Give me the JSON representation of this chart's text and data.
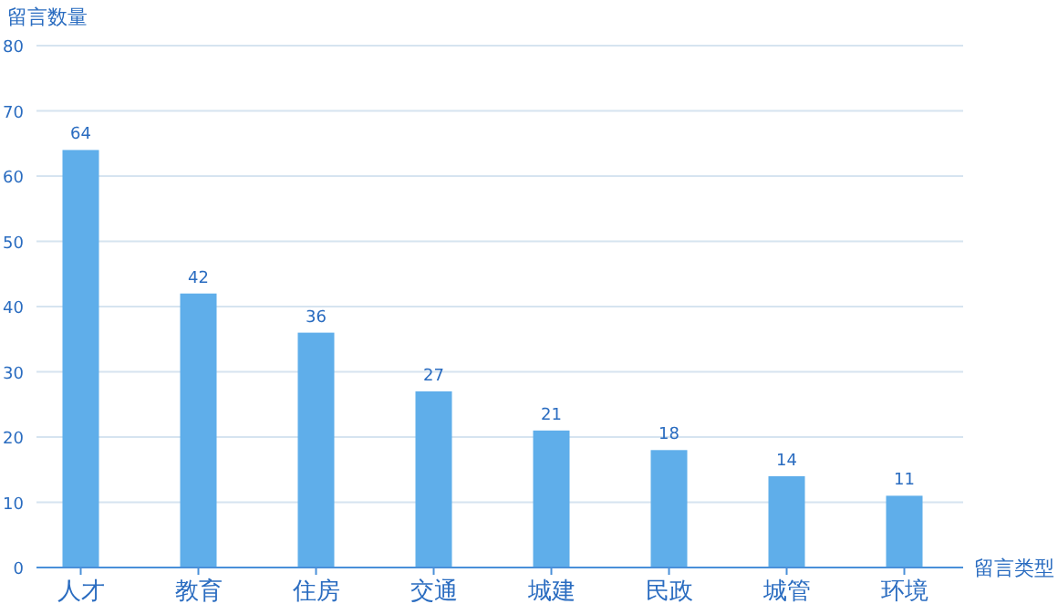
{
  "chart_data": {
    "type": "bar",
    "xlabel": "留言类型",
    "ylabel": "留言数量",
    "categories": [
      "人才",
      "教育",
      "住房",
      "交通",
      "城建",
      "民政",
      "城管",
      "环境"
    ],
    "values": [
      64,
      42,
      36,
      27,
      21,
      18,
      14,
      11
    ],
    "color": "#5faeea",
    "ylim": [
      0,
      80
    ],
    "yticks": [
      0,
      10,
      20,
      30,
      40,
      50,
      60,
      70,
      80
    ],
    "grid": "y",
    "data_labels": true
  }
}
